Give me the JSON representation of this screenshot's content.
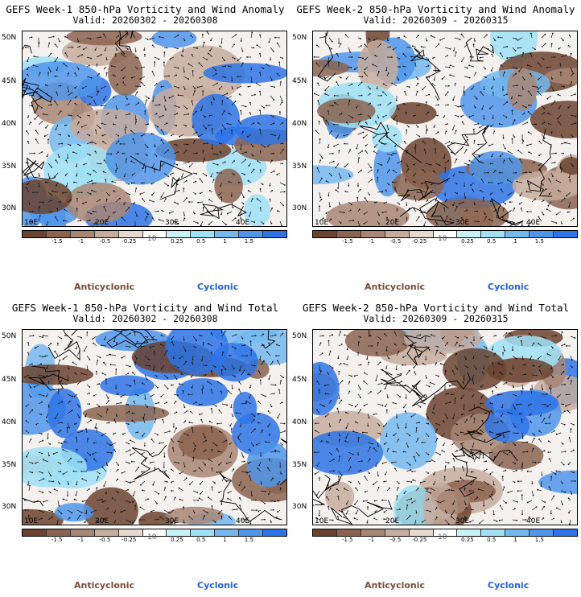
{
  "panels": [
    {
      "title": "GEFS Week-1 850-hPa Vorticity and Wind Anomaly",
      "valid": "Valid: 20260302 - 20260308"
    },
    {
      "title": "GEFS Week-2 850-hPa Vorticity and Wind Anomaly",
      "valid": "Valid: 20260309 - 20260315"
    },
    {
      "title": "GEFS Week-1 850-hPa Vorticity and Wind Total",
      "valid": "Valid: 20260302 - 20260308"
    },
    {
      "title": "GEFS Week-2 850-hPa Vorticity and Wind Total",
      "valid": "Valid: 20260309 - 20260315"
    }
  ],
  "axes": {
    "lat_labels": [
      "50N",
      "45N",
      "40N",
      "35N",
      "30N"
    ],
    "lon_labels": [
      "10E",
      "20E",
      "30E",
      "40E"
    ]
  },
  "colorbar": {
    "labels": [
      "-1.5",
      "-1",
      "-0.5",
      "-0.25",
      "0.25",
      "0.5",
      "1",
      "1.5"
    ],
    "center_mark": "10",
    "colors": [
      "#6b4330",
      "#8b6450",
      "#a88674",
      "#c6ac9e",
      "#e6d8cf",
      "#ffffff",
      "#c9f1f8",
      "#9fe0f4",
      "#74b8ee",
      "#4f95ea",
      "#2e74e6"
    ]
  },
  "legend": {
    "anticyclonic": "Anticyclonic",
    "cyclonic": "Cyclonic"
  }
}
